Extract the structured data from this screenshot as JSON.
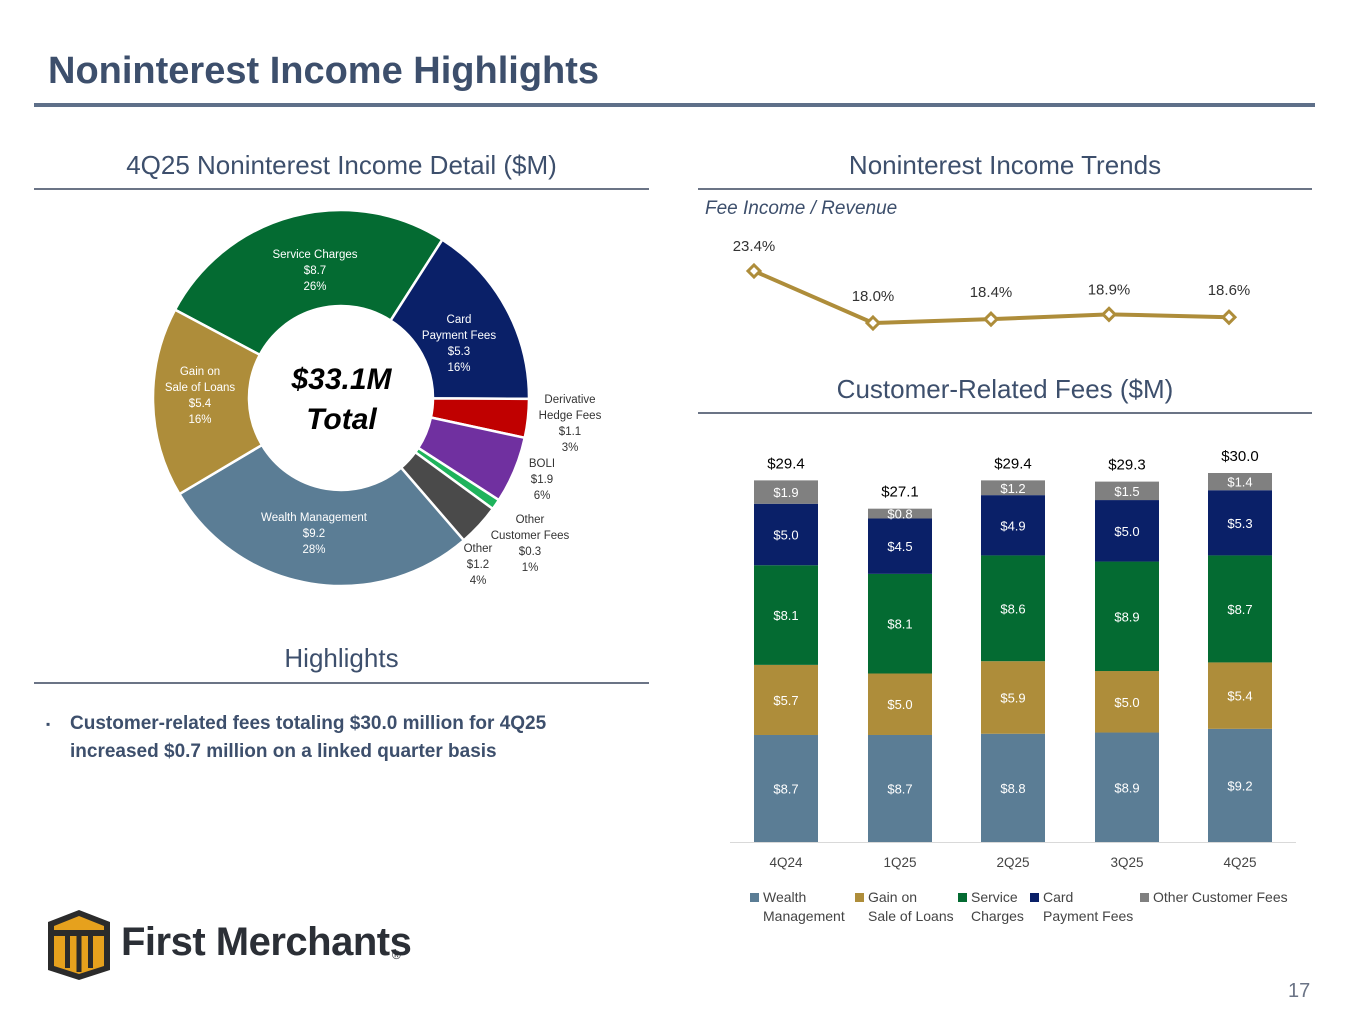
{
  "title": "Noninterest Income Highlights",
  "sections": {
    "detail_title": "4Q25 Noninterest Income Detail ($M)",
    "trends_title": "Noninterest Income Trends",
    "fees_title": "Customer-Related Fees ($M)",
    "highlights_title": "Highlights"
  },
  "highlights": {
    "bullet_marker": "▪",
    "bullet": "Customer-related fees totaling $30.0 million for 4Q25 increased $0.7 million on a linked quarter basis"
  },
  "logo": {
    "name": "First Merchants",
    "registered": "®"
  },
  "page_number": "17",
  "colors": {
    "title": "#3d4f6c",
    "wealth": "#5b7d95",
    "gain": "#ae8d3a",
    "service": "#046b32",
    "card": "#0a2068",
    "other_customer": "#808080",
    "derivative": "#c00000",
    "boli": "#7030a0",
    "other_fees": "#1fb35c",
    "other": "#4a4a4a",
    "line": "#ae8d3a"
  },
  "chart_data": [
    {
      "type": "pie",
      "title": "4Q25 Noninterest Income Detail ($M)",
      "center_label": [
        "$33.1M",
        "Total"
      ],
      "slices": [
        {
          "key": "service",
          "label": [
            "Service Charges"
          ],
          "value": 8.7,
          "value_label": "$8.7",
          "percent": "26%"
        },
        {
          "key": "card",
          "label": [
            "Card",
            "Payment Fees"
          ],
          "value": 5.3,
          "value_label": "$5.3",
          "percent": "16%"
        },
        {
          "key": "derivative",
          "label": [
            "Derivative",
            "Hedge Fees"
          ],
          "value": 1.1,
          "value_label": "$1.1",
          "percent": "3%"
        },
        {
          "key": "boli",
          "label": [
            "BOLI"
          ],
          "value": 1.9,
          "value_label": "$1.9",
          "percent": "6%"
        },
        {
          "key": "other_fees",
          "label": [
            "Other",
            "Customer Fees"
          ],
          "value": 0.3,
          "value_label": "$0.3",
          "percent": "1%"
        },
        {
          "key": "other",
          "label": [
            "Other"
          ],
          "value": 1.2,
          "value_label": "$1.2",
          "percent": "4%"
        },
        {
          "key": "wealth",
          "label": [
            "Wealth Management"
          ],
          "value": 9.2,
          "value_label": "$9.2",
          "percent": "28%"
        },
        {
          "key": "gain",
          "label": [
            "Gain on",
            "Sale of Loans"
          ],
          "value": 5.4,
          "value_label": "$5.4",
          "percent": "16%"
        }
      ]
    },
    {
      "type": "line",
      "title": "Fee Income / Revenue",
      "categories": [
        "4Q24",
        "1Q25",
        "2Q25",
        "3Q25",
        "4Q25"
      ],
      "values": [
        23.4,
        18.0,
        18.4,
        18.9,
        18.6
      ],
      "labels": [
        "23.4%",
        "18.0%",
        "18.4%",
        "18.9%",
        "18.6%"
      ]
    },
    {
      "type": "bar",
      "stacked": true,
      "title": "Customer-Related Fees ($M)",
      "categories": [
        "4Q24",
        "1Q25",
        "2Q25",
        "3Q25",
        "4Q25"
      ],
      "series": [
        {
          "key": "wealth",
          "name": [
            "Wealth",
            "Management"
          ],
          "values": [
            8.7,
            8.7,
            8.8,
            8.9,
            9.2
          ],
          "labels": [
            "$8.7",
            "$8.7",
            "$8.8",
            "$8.9",
            "$9.2"
          ]
        },
        {
          "key": "gain",
          "name": [
            "Gain on",
            "Sale of Loans"
          ],
          "values": [
            5.7,
            5.0,
            5.9,
            5.0,
            5.4
          ],
          "labels": [
            "$5.7",
            "$5.0",
            "$5.9",
            "$5.0",
            "$5.4"
          ]
        },
        {
          "key": "service",
          "name": [
            "Service",
            "Charges"
          ],
          "values": [
            8.1,
            8.1,
            8.6,
            8.9,
            8.7
          ],
          "labels": [
            "$8.1",
            "$8.1",
            "$8.6",
            "$8.9",
            "$8.7"
          ]
        },
        {
          "key": "card",
          "name": [
            "Card",
            "Payment Fees"
          ],
          "values": [
            5.0,
            4.5,
            4.9,
            5.0,
            5.3
          ],
          "labels": [
            "$5.0",
            "$4.5",
            "$4.9",
            "$5.0",
            "$5.3"
          ]
        },
        {
          "key": "other_customer",
          "name": [
            "Other Customer Fees"
          ],
          "values": [
            1.9,
            0.8,
            1.2,
            1.5,
            1.4
          ],
          "labels": [
            "$1.9",
            "$0.8",
            "$1.2",
            "$1.5",
            "$1.4"
          ]
        }
      ],
      "totals": [
        "$29.4",
        "$27.1",
        "$29.4",
        "$29.3",
        "$30.0"
      ],
      "ylim": [
        0,
        30
      ]
    }
  ]
}
